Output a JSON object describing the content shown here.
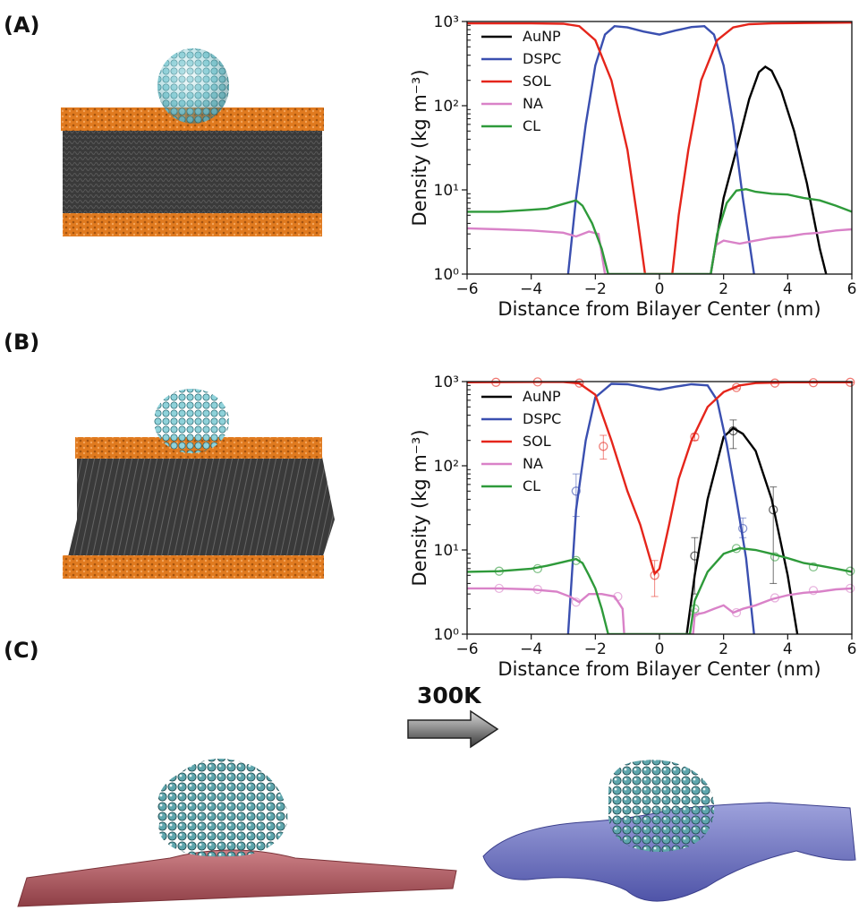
{
  "panels": {
    "a": {
      "label": "(A)"
    },
    "b": {
      "label": "(B)"
    },
    "c": {
      "label": "(C)"
    }
  },
  "arrow": {
    "label": "300K"
  },
  "colors": {
    "lipid_head": "#e07a1f",
    "lipid_tail": "#3a3a3a",
    "nanoparticle": "#7fc6cf",
    "membrane_before": "#b5636a",
    "membrane_after": "#6a6fbe",
    "AuNP": "#000000",
    "DSPC": "#3a4fb0",
    "SOL": "#e5251b",
    "NA": "#d982c8",
    "CL": "#2e9a3a"
  },
  "chart_data": [
    {
      "type": "line",
      "panel": "A",
      "xlabel": "Distance from Bilayer Center (nm)",
      "ylabel": "Density (kg m⁻³)",
      "xlim": [
        -6,
        6
      ],
      "ylim": [
        1,
        1000
      ],
      "yscale": "log",
      "xticks": [
        "−6",
        "−4",
        "−2",
        "0",
        "2",
        "4",
        "6"
      ],
      "xtick_values": [
        -6,
        -4,
        -2,
        0,
        2,
        4,
        6
      ],
      "yticks": [
        "10⁰",
        "10¹",
        "10²",
        "10³"
      ],
      "ytick_values": [
        1,
        10,
        100,
        1000
      ],
      "legend_position": "upper-left",
      "legend": [
        "AuNP",
        "DSPC",
        "SOL",
        "NA",
        "CL"
      ],
      "series": [
        {
          "name": "AuNP",
          "x": [
            1.6,
            2.0,
            2.4,
            2.8,
            3.1,
            3.3,
            3.5,
            3.8,
            4.2,
            4.6,
            5.0,
            5.2
          ],
          "y": [
            1,
            8,
            30,
            120,
            250,
            290,
            260,
            150,
            50,
            12,
            2,
            1
          ]
        },
        {
          "name": "DSPC",
          "x": [
            -2.85,
            -2.6,
            -2.3,
            -2.0,
            -1.7,
            -1.4,
            -1.0,
            -0.5,
            0,
            0.5,
            1.0,
            1.4,
            1.7,
            2.0,
            2.3,
            2.6,
            2.95
          ],
          "y": [
            1,
            8,
            60,
            300,
            700,
            880,
            850,
            760,
            700,
            780,
            860,
            880,
            700,
            300,
            60,
            8,
            1
          ]
        },
        {
          "name": "SOL",
          "x": [
            -6,
            -4,
            -3.0,
            -2.5,
            -2.0,
            -1.5,
            -1.0,
            -0.7,
            -0.45,
            0.4,
            0.6,
            0.9,
            1.3,
            1.8,
            2.3,
            2.8,
            3.5,
            4.5,
            6
          ],
          "y": [
            950,
            950,
            940,
            880,
            600,
            200,
            30,
            5,
            1,
            1,
            5,
            30,
            200,
            600,
            850,
            930,
            950,
            960,
            970
          ]
        },
        {
          "name": "NA",
          "x": [
            -6,
            -5,
            -4,
            -3.0,
            -2.6,
            -2.2,
            -1.9,
            -1.7,
            1.6,
            1.75,
            2.0,
            2.5,
            3.0,
            3.5,
            4.0,
            4.5,
            5.0,
            5.5,
            6
          ],
          "y": [
            3.5,
            3.4,
            3.3,
            3.1,
            2.8,
            3.2,
            3.0,
            1,
            1,
            2.2,
            2.5,
            2.3,
            2.5,
            2.7,
            2.8,
            3.0,
            3.1,
            3.3,
            3.4
          ]
        },
        {
          "name": "CL",
          "x": [
            -6,
            -5,
            -4,
            -3.5,
            -3.0,
            -2.6,
            -2.4,
            -2.1,
            -1.8,
            -1.6,
            1.6,
            1.8,
            2.1,
            2.4,
            2.7,
            3.0,
            3.5,
            4.0,
            4.5,
            5.0,
            5.5,
            6
          ],
          "y": [
            5.5,
            5.5,
            5.8,
            6.0,
            6.8,
            7.5,
            6.5,
            4.0,
            2.0,
            1,
            1,
            3.0,
            7.0,
            9.8,
            10.2,
            9.5,
            9.0,
            8.8,
            8.0,
            7.5,
            6.5,
            5.5
          ]
        }
      ]
    },
    {
      "type": "line",
      "panel": "B",
      "xlabel": "Distance from Bilayer Center (nm)",
      "ylabel": "Density (kg m⁻³)",
      "xlim": [
        -6,
        6
      ],
      "ylim": [
        1,
        1000
      ],
      "yscale": "log",
      "xticks": [
        "−6",
        "−4",
        "−2",
        "0",
        "2",
        "4",
        "6"
      ],
      "xtick_values": [
        -6,
        -4,
        -2,
        0,
        2,
        4,
        6
      ],
      "yticks": [
        "10⁰",
        "10¹",
        "10²",
        "10³"
      ],
      "ytick_values": [
        1,
        10,
        100,
        1000
      ],
      "legend_position": "upper-left",
      "legend": [
        "AuNP",
        "DSPC",
        "SOL",
        "NA",
        "CL"
      ],
      "series": [
        {
          "name": "AuNP",
          "x": [
            0.85,
            1.1,
            1.5,
            2.0,
            2.3,
            2.6,
            3.0,
            3.5,
            4.0,
            4.3
          ],
          "y": [
            1,
            5,
            40,
            220,
            280,
            240,
            150,
            40,
            5,
            1
          ],
          "markers": {
            "x": [
              1.1,
              2.3,
              3.55
            ],
            "y": [
              8.5,
              260,
              30
            ],
            "err_low": [
              3,
              160,
              4
            ],
            "err_high": [
              14,
              350,
              56
            ]
          }
        },
        {
          "name": "DSPC",
          "x": [
            -2.85,
            -2.6,
            -2.3,
            -2.0,
            -1.5,
            -1.0,
            -0.5,
            0,
            0.5,
            1.0,
            1.5,
            1.8,
            2.1,
            2.4,
            2.7,
            2.95
          ],
          "y": [
            1,
            30,
            200,
            650,
            940,
            930,
            860,
            800,
            870,
            930,
            900,
            600,
            180,
            40,
            8,
            1
          ],
          "markers": {
            "x": [
              -2.6,
              2.6
            ],
            "y": [
              50,
              18
            ],
            "err_low": [
              25,
              14
            ],
            "err_high": [
              80,
              24
            ]
          }
        },
        {
          "name": "SOL",
          "x": [
            -6,
            -4,
            -3.0,
            -2.5,
            -2.0,
            -1.5,
            -1.0,
            -0.6,
            -0.3,
            -0.15,
            0,
            0.3,
            0.6,
            1.0,
            1.5,
            2.0,
            2.5,
            3.0,
            4,
            5,
            6
          ],
          "y": [
            980,
            990,
            990,
            950,
            700,
            200,
            50,
            20,
            8,
            5.2,
            6,
            20,
            70,
            200,
            500,
            750,
            900,
            960,
            980,
            980,
            980
          ],
          "markers": {
            "x": [
              -5.1,
              -3.8,
              -2.5,
              -1.75,
              -0.15,
              1.1,
              2.4,
              3.6,
              4.8,
              5.95
            ],
            "y": [
              980,
              990,
              960,
              170,
              5,
              220,
              850,
              960,
              970,
              980
            ],
            "err_low": [
              970,
              980,
              940,
              120,
              2.8,
              200,
              820,
              950,
              960,
              970
            ],
            "err_high": [
              990,
              1000,
              980,
              230,
              7.5,
              240,
              880,
              975,
              985,
              990
            ]
          }
        },
        {
          "name": "NA",
          "x": [
            -6,
            -5,
            -4,
            -3.2,
            -2.8,
            -2.5,
            -2.2,
            -1.8,
            -1.4,
            -1.15,
            -1.1,
            1.05,
            1.1,
            1.4,
            1.7,
            2.0,
            2.3,
            2.6,
            3.0,
            3.5,
            4.0,
            4.5,
            5.0,
            5.5,
            6
          ],
          "y": [
            3.5,
            3.5,
            3.4,
            3.2,
            2.8,
            2.4,
            3.0,
            3.0,
            2.8,
            2.0,
            1,
            1,
            1.7,
            1.8,
            2.0,
            2.2,
            1.8,
            2.0,
            2.2,
            2.6,
            2.9,
            3.1,
            3.2,
            3.4,
            3.5
          ],
          "markers": {
            "x": [
              -5.0,
              -3.8,
              -2.6,
              -1.3,
              1.1,
              2.4,
              3.6,
              4.8,
              5.95
            ],
            "y": [
              3.5,
              3.4,
              2.4,
              2.8,
              1.8,
              1.8,
              2.7,
              3.3,
              3.5
            ],
            "err_low": [],
            "err_high": []
          }
        },
        {
          "name": "CL",
          "x": [
            -6,
            -5,
            -4,
            -3.5,
            -3.0,
            -2.6,
            -2.4,
            -2.2,
            -2.0,
            -1.8,
            -1.6,
            0.95,
            1.1,
            1.5,
            2.0,
            2.5,
            3.0,
            3.5,
            4.0,
            4.5,
            5.0,
            5.5,
            6
          ],
          "y": [
            5.5,
            5.6,
            6.0,
            6.5,
            7.2,
            7.8,
            7.0,
            5.0,
            3.5,
            2.0,
            1,
            1,
            2.5,
            5.5,
            9.0,
            10.5,
            10.0,
            9.0,
            8.0,
            7.0,
            6.5,
            6.0,
            5.5
          ],
          "markers": {
            "x": [
              -5.0,
              -3.8,
              -2.6,
              1.1,
              2.4,
              3.6,
              4.8,
              5.95
            ],
            "y": [
              5.6,
              6.0,
              7.5,
              2.0,
              10.4,
              8.3,
              6.3,
              5.6
            ],
            "err_low": [],
            "err_high": []
          }
        }
      ]
    }
  ]
}
